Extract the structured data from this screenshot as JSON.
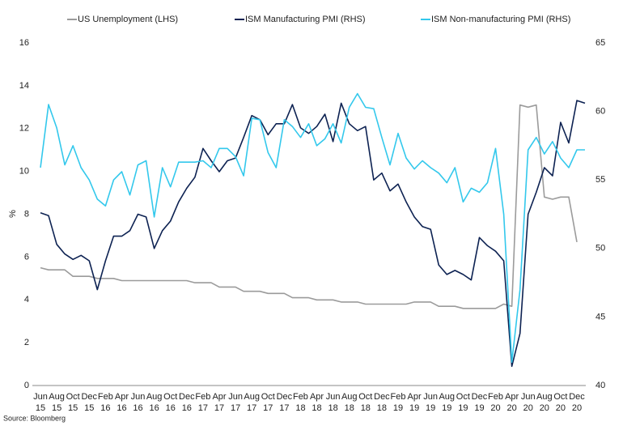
{
  "chart_data": {
    "type": "line",
    "ylabel": "%",
    "source": "Source: Bloomberg",
    "legend": "top",
    "categories": [
      [
        "Jun",
        "15"
      ],
      null,
      [
        "Aug",
        "15"
      ],
      null,
      [
        "Oct",
        "15"
      ],
      null,
      [
        "Dec",
        "15"
      ],
      null,
      [
        "Feb",
        "16"
      ],
      null,
      [
        "Apr",
        "16"
      ],
      null,
      [
        "Jun",
        "16"
      ],
      null,
      [
        "Aug",
        "16"
      ],
      null,
      [
        "Oct",
        "16"
      ],
      null,
      [
        "Dec",
        "16"
      ],
      null,
      [
        "Feb",
        "17"
      ],
      null,
      [
        "Apr",
        "17"
      ],
      null,
      [
        "Jun",
        "17"
      ],
      null,
      [
        "Aug",
        "17"
      ],
      null,
      [
        "Oct",
        "17"
      ],
      null,
      [
        "Dec",
        "17"
      ],
      null,
      [
        "Feb",
        "18"
      ],
      null,
      [
        "Apr",
        "18"
      ],
      null,
      [
        "Jun",
        "18"
      ],
      null,
      [
        "Aug",
        "18"
      ],
      null,
      [
        "Oct",
        "18"
      ],
      null,
      [
        "Dec",
        "18"
      ],
      null,
      [
        "Feb",
        "19"
      ],
      null,
      [
        "Apr",
        "19"
      ],
      null,
      [
        "Jun",
        "19"
      ],
      null,
      [
        "Aug",
        "19"
      ],
      null,
      [
        "Oct",
        "19"
      ],
      null,
      [
        "Dec",
        "19"
      ],
      null,
      [
        "Feb",
        "20"
      ],
      null,
      [
        "Apr",
        "20"
      ],
      null,
      [
        "Jun",
        "20"
      ],
      null,
      [
        "Aug",
        "20"
      ],
      null,
      [
        "Oct",
        "20"
      ],
      null,
      [
        "Dec",
        "20"
      ],
      null
    ],
    "ylim": [
      0,
      16
    ],
    "yticks": [
      0,
      2,
      4,
      6,
      8,
      10,
      12,
      14,
      16
    ],
    "y2lim": [
      40,
      65
    ],
    "y2ticks": [
      40,
      45,
      50,
      55,
      60,
      65
    ],
    "series": [
      {
        "name": "US Unemployment (LHS)",
        "color": "#9b9b9b",
        "axis": "y",
        "values": [
          5.5,
          5.4,
          5.4,
          5.4,
          5.1,
          5.1,
          5.1,
          5.0,
          5.0,
          5.0,
          4.9,
          4.9,
          4.9,
          4.9,
          4.9,
          4.9,
          4.9,
          4.9,
          4.9,
          4.8,
          4.8,
          4.8,
          4.6,
          4.6,
          4.6,
          4.4,
          4.4,
          4.4,
          4.3,
          4.3,
          4.3,
          4.1,
          4.1,
          4.1,
          4.0,
          4.0,
          4.0,
          3.9,
          3.9,
          3.9,
          3.8,
          3.8,
          3.8,
          3.8,
          3.8,
          3.8,
          3.9,
          3.9,
          3.9,
          3.7,
          3.7,
          3.7,
          3.6,
          3.6,
          3.6,
          3.6,
          3.6,
          3.8,
          3.7,
          13.1,
          13.0,
          13.1,
          8.8,
          8.7,
          8.8,
          8.8,
          6.7,
          null
        ]
      },
      {
        "name": "ISM Manufacturing PMI (RHS)",
        "color": "#0d2252",
        "axis": "y2",
        "values": [
          52.6,
          52.4,
          50.3,
          49.6,
          49.2,
          49.5,
          49.1,
          47.0,
          49.1,
          50.9,
          50.9,
          51.3,
          52.5,
          52.3,
          50.0,
          51.3,
          52.0,
          53.4,
          54.4,
          55.2,
          57.3,
          56.4,
          55.6,
          56.4,
          56.6,
          58.1,
          59.7,
          59.4,
          58.3,
          59.1,
          59.1,
          60.5,
          58.8,
          58.4,
          58.9,
          59.8,
          57.8,
          60.6,
          59.1,
          58.6,
          58.9,
          55.0,
          55.5,
          54.2,
          54.7,
          53.4,
          52.3,
          51.6,
          51.4,
          48.8,
          48.1,
          48.4,
          48.1,
          47.7,
          50.8,
          50.2,
          49.8,
          49.1,
          41.4,
          43.8,
          52.5,
          54.1,
          55.9,
          55.3,
          59.2,
          57.7,
          60.8,
          60.6
        ]
      },
      {
        "name": "ISM Non-manufacturing PMI (RHS)",
        "color": "#33c8ec",
        "axis": "y2",
        "values": [
          55.9,
          60.5,
          58.8,
          56.1,
          57.5,
          55.9,
          55.0,
          53.6,
          53.1,
          55.0,
          55.6,
          53.9,
          56.1,
          56.4,
          52.3,
          55.9,
          54.5,
          56.3,
          56.3,
          56.3,
          56.4,
          55.9,
          57.3,
          57.3,
          56.7,
          55.3,
          59.5,
          59.4,
          57.0,
          55.9,
          59.4,
          58.9,
          58.1,
          59.1,
          57.5,
          58.0,
          59.1,
          57.7,
          60.3,
          61.3,
          60.3,
          60.2,
          58.1,
          56.1,
          58.4,
          56.6,
          55.8,
          56.4,
          55.9,
          55.5,
          54.8,
          55.9,
          53.4,
          54.4,
          54.1,
          54.8,
          57.3,
          52.5,
          41.7,
          47.0,
          57.2,
          58.1,
          56.9,
          57.8,
          56.6,
          55.9,
          57.2,
          57.2
        ]
      }
    ]
  }
}
